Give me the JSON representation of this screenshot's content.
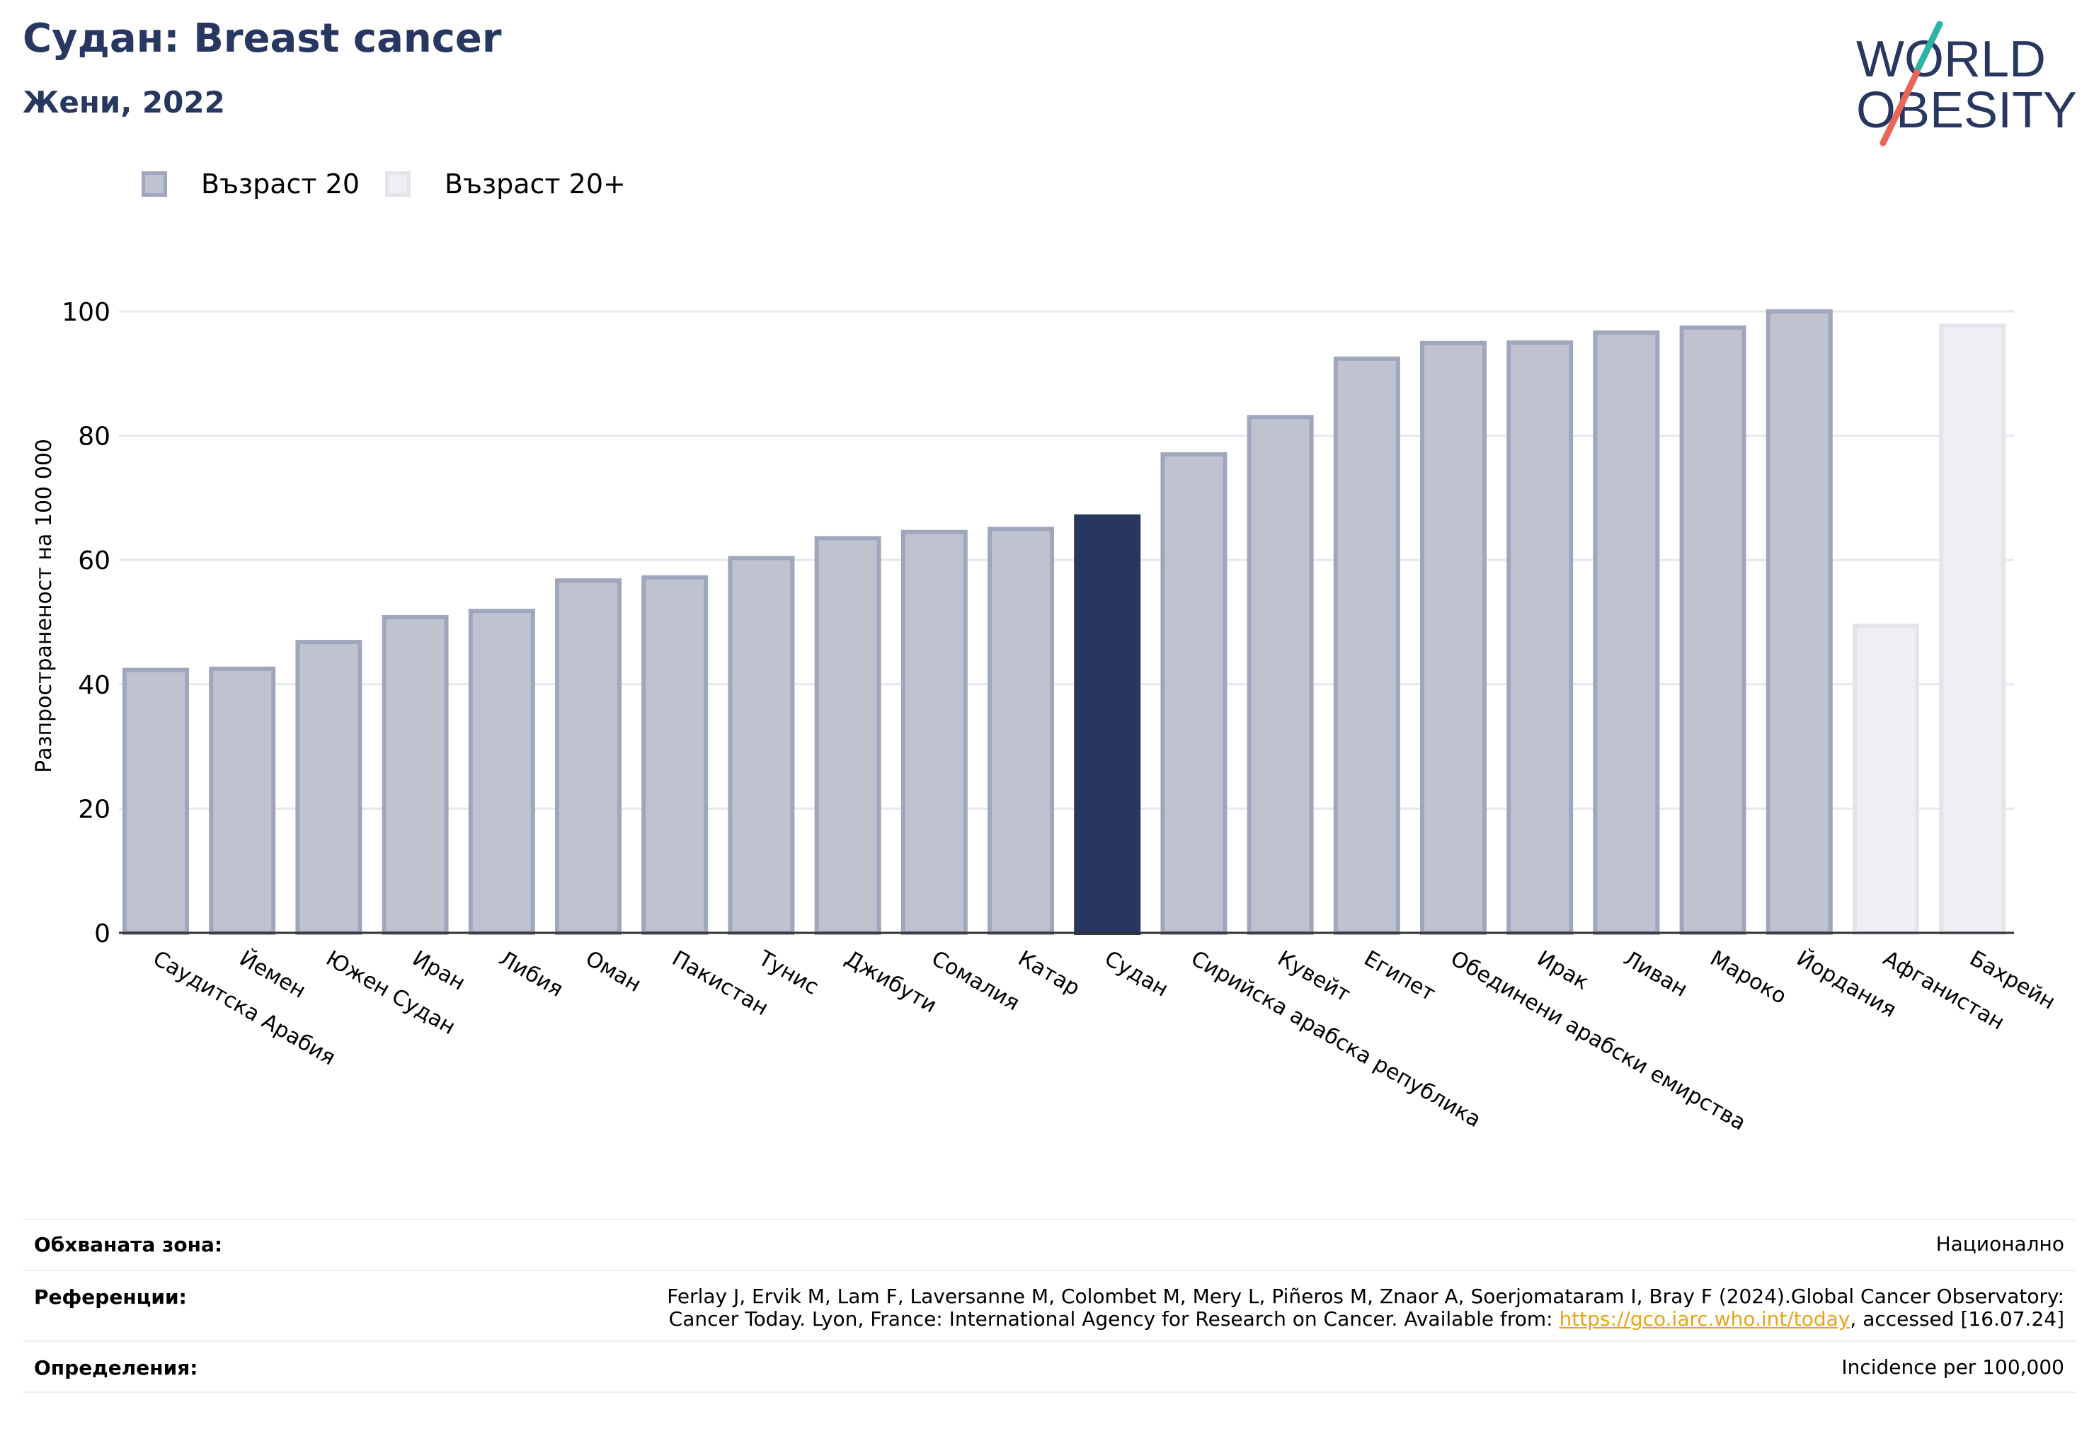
{
  "header": {
    "title": "Судан: Breast cancer",
    "subtitle": "Жени, 2022"
  },
  "logo": {
    "line1": "WORLD",
    "line2": "OBESITY"
  },
  "legend": {
    "items": [
      {
        "label": "Възраст 20",
        "color": "#bfc2cf"
      },
      {
        "label": "Възраст 20+",
        "color": "#eeeff3"
      }
    ]
  },
  "chart_data": {
    "type": "bar",
    "ylabel": "Разпространеност  на 100 000",
    "ylim": [
      0,
      100
    ],
    "yticks": [
      0,
      20,
      40,
      60,
      80,
      100
    ],
    "grid": true,
    "legend_position": "top-left",
    "categories": [
      "Саудитска Арабия",
      "Йемен",
      "Южен Судан",
      "Иран",
      "Либия",
      "Оман",
      "Пакистан",
      "Тунис",
      "Джибути",
      "Сомалия",
      "Катар",
      "Судан",
      "Сирийска арабска република",
      "Кувейт",
      "Египет",
      "Обединени арабски емирства",
      "Ирак",
      "Ливан",
      "Мароко",
      "Йордания",
      "Афганистан",
      "Бахрейн"
    ],
    "values": [
      42.3,
      42.5,
      46.8,
      50.8,
      51.8,
      56.7,
      57.2,
      60.3,
      63.5,
      64.5,
      65.0,
      67.0,
      77.0,
      83.0,
      92.4,
      94.9,
      95.0,
      96.6,
      97.4,
      100.0,
      49.4,
      97.7
    ],
    "groups": [
      "Възраст 20",
      "Възраст 20",
      "Възраст 20",
      "Възраст 20",
      "Възраст 20",
      "Възраст 20",
      "Възраст 20",
      "Възраст 20",
      "Възраст 20",
      "Възраст 20",
      "Възраст 20",
      "Възраст 20",
      "Възраст 20",
      "Възраст 20",
      "Възраст 20",
      "Възраст 20",
      "Възраст 20",
      "Възраст 20",
      "Възраст 20",
      "Възраст 20",
      "Възраст 20+",
      "Възраст 20+"
    ],
    "highlight": "Судан",
    "colors": {
      "age20_fill": "#bfc2cf",
      "age20_stroke": "#a0a6bb",
      "age20plus_fill": "#eeeff3",
      "age20plus_stroke": "#e3e5ea",
      "highlight": "#283760",
      "grid": "#e6e8ee",
      "axis": "#333333"
    }
  },
  "footer": {
    "coverage_label": "Обхваната зона:",
    "coverage_value": "Национално",
    "references_label": "Референции:",
    "references_line1": "Ferlay J, Ervik M, Lam F, Laversanne M, Colombet M, Mery L, Piñeros M, Znaor A, Soerjomataram I, Bray F (2024).Global Cancer Observatory:",
    "references_line2_pre": "Cancer Today. Lyon, France: International Agency for Research on Cancer. Available from: ",
    "references_link": "https://gco.iarc.who.int/today",
    "references_line2_post": ", accessed [16.07.24]",
    "definitions_label": "Определения:",
    "definitions_value": "Incidence per 100,000"
  }
}
